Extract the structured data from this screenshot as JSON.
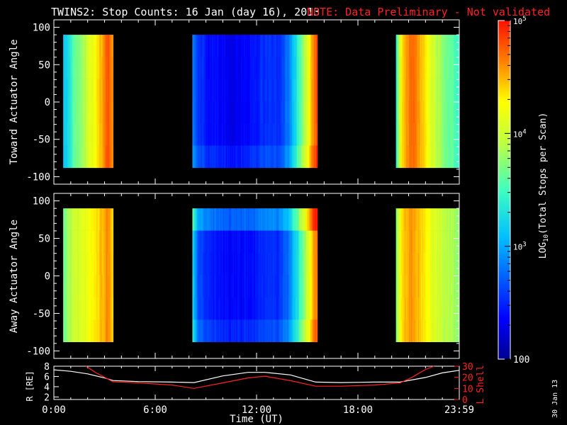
{
  "title": {
    "main": "TWINS2: Stop Counts: 16 Jan (day  16), 2013",
    "note": "NOTE: Data Preliminary - Not validated",
    "note_color": "#ff2020"
  },
  "stamp": "30 Jan 13",
  "chart_data": [
    {
      "type": "heatmap",
      "ylabel": "Toward Actuator Angle",
      "ylim": [
        -110,
        110
      ],
      "yticks": [
        -100,
        -50,
        0,
        50,
        100
      ],
      "data_ylim": [
        -88,
        90
      ],
      "x_range_hours": [
        0,
        24
      ],
      "data_blocks_hours": [
        [
          0.55,
          3.5
        ],
        [
          8.2,
          15.6
        ],
        [
          20.25,
          24
        ]
      ],
      "block_profiles": [
        {
          "hours": [
            0.55,
            0.8,
            1.2,
            1.8,
            2.4,
            2.9,
            3.2,
            3.5
          ],
          "log10": [
            3.1,
            3.25,
            3.6,
            3.9,
            4.25,
            4.55,
            4.8,
            4.6
          ]
        },
        {
          "hours": [
            8.2,
            8.5,
            9.0,
            9.5,
            10.5,
            11.8,
            12.5,
            13.3,
            14.0,
            14.7,
            15.1,
            15.4,
            15.6
          ],
          "log10": [
            2.9,
            2.6,
            2.45,
            2.4,
            2.3,
            2.4,
            2.55,
            2.5,
            2.9,
            3.7,
            4.2,
            4.7,
            4.8
          ]
        },
        {
          "hours": [
            20.25,
            20.6,
            21.2,
            21.8,
            22.5,
            23.2,
            24.0
          ],
          "log10": [
            3.3,
            4.4,
            4.75,
            4.45,
            4.0,
            3.7,
            3.45
          ]
        }
      ],
      "xticks": [
        "0:00",
        "6:00",
        "12:00",
        "18:00",
        "23:59"
      ]
    },
    {
      "type": "heatmap",
      "ylabel": "Away Actuator Angle",
      "ylim": [
        -110,
        110
      ],
      "yticks": [
        -100,
        -50,
        0,
        50,
        100
      ],
      "data_ylim": [
        -88,
        90
      ],
      "x_range_hours": [
        0,
        24
      ],
      "data_blocks_hours": [
        [
          0.55,
          3.5
        ],
        [
          8.2,
          15.6
        ],
        [
          20.25,
          24
        ]
      ],
      "block_profiles": [
        {
          "hours": [
            0.55,
            0.8,
            1.2,
            1.8,
            2.4,
            2.9,
            3.2,
            3.5
          ],
          "log10": [
            3.6,
            3.8,
            4.0,
            4.15,
            4.3,
            4.5,
            4.6,
            4.4
          ]
        },
        {
          "hours": [
            8.2,
            8.5,
            9.0,
            9.5,
            10.5,
            11.8,
            12.5,
            13.3,
            14.0,
            14.7,
            15.1,
            15.4,
            15.6
          ],
          "log10": [
            3.3,
            2.7,
            2.5,
            2.45,
            2.35,
            2.4,
            2.55,
            2.5,
            2.85,
            3.6,
            4.15,
            4.6,
            4.7
          ]
        },
        {
          "hours": [
            20.25,
            20.6,
            21.2,
            21.8,
            22.5,
            23.2,
            24.0
          ],
          "log10": [
            3.6,
            4.4,
            4.6,
            4.4,
            4.1,
            3.9,
            3.8
          ]
        }
      ],
      "xticks": [
        "0:00",
        "6:00",
        "12:00",
        "18:00",
        "23:59"
      ]
    },
    {
      "type": "line",
      "xlabel": "Time (UT)",
      "ylabel_left": "R [RE]",
      "ylabel_right": "L Shell",
      "ylim_left": [
        1.5,
        8
      ],
      "yticks_left": [
        2,
        4,
        6,
        8
      ],
      "ylim_right": [
        0,
        30
      ],
      "yticks_right": [
        0,
        10,
        20,
        30
      ],
      "xticks": [
        "0:00",
        "6:00",
        "12:00",
        "18:00",
        "23:59"
      ],
      "series": [
        {
          "color": "#ffffff",
          "axis": "left",
          "x_hours": [
            0,
            1,
            2,
            3,
            3.5,
            5,
            7,
            8.3,
            10,
            11.5,
            12.5,
            14,
            15.5,
            17,
            19,
            20.5,
            22,
            23,
            24
          ],
          "values": [
            7.3,
            7.0,
            6.5,
            5.7,
            5.2,
            5.0,
            4.9,
            4.8,
            6.1,
            6.8,
            6.8,
            6.3,
            4.9,
            4.8,
            4.9,
            4.9,
            5.8,
            6.7,
            7.2
          ]
        },
        {
          "color": "#ff2020",
          "axis": "right",
          "x_hours": [
            1.9,
            2.5,
            3.0,
            3.5,
            5,
            7,
            8.3,
            10,
            11.5,
            12.5,
            14,
            15.5,
            17,
            19,
            20.5,
            21.2,
            22,
            22.5
          ],
          "values": [
            30,
            24,
            20,
            16,
            15,
            13,
            10,
            15,
            19.5,
            21,
            17,
            12,
            12,
            13,
            15,
            20,
            27,
            32
          ]
        }
      ]
    }
  ],
  "colorbar": {
    "label": "LOG10(Total Stops per Scan)",
    "label_prefix": "LOG",
    "label_sub": "10",
    "label_rest": "(Total Stops per Scan)",
    "scale": "log",
    "range": [
      100,
      100000
    ],
    "tick_labels": [
      {
        "base": "10",
        "exp": "5",
        "value": 100000
      },
      {
        "base": "10",
        "exp": "4",
        "value": 10000
      },
      {
        "base": "10",
        "exp": "3",
        "value": 1000
      },
      {
        "text": "100",
        "value": 100
      }
    ]
  }
}
